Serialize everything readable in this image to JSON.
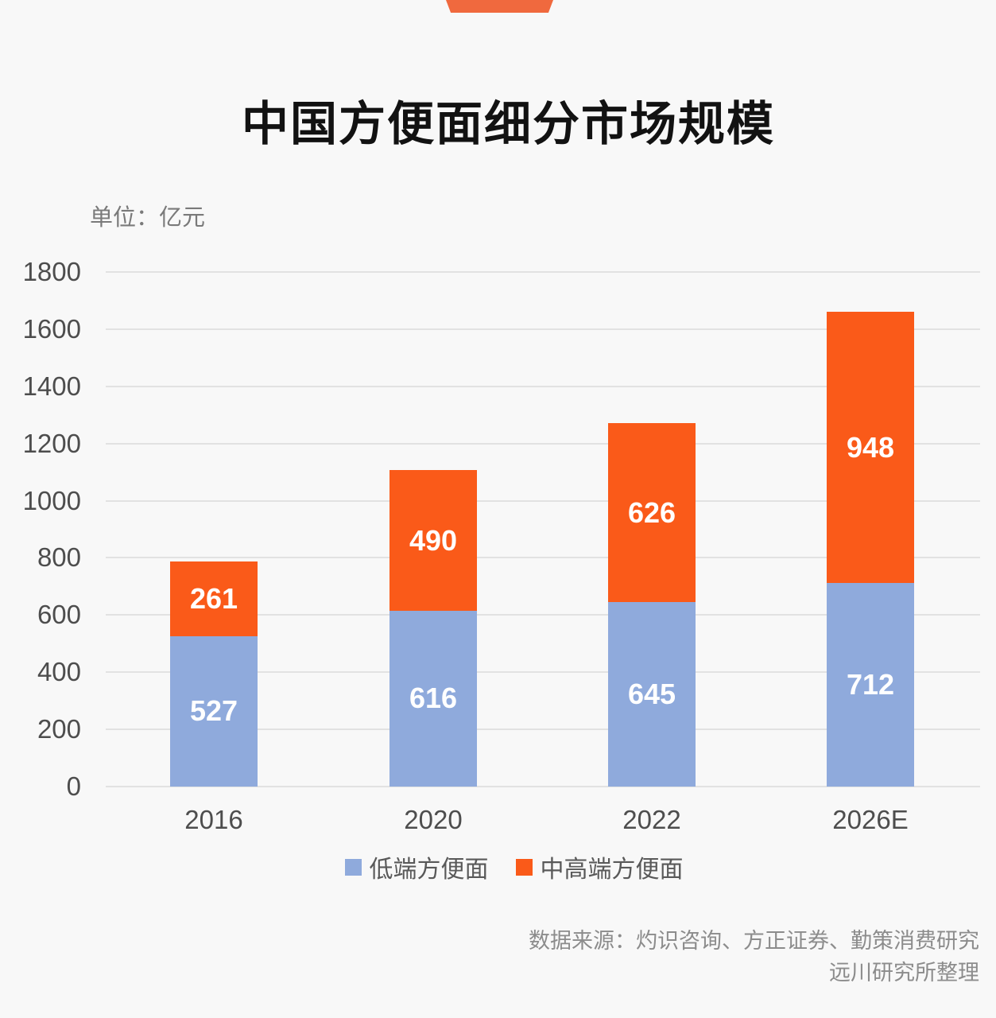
{
  "page": {
    "background_color": "#f8f8f8",
    "banner_color": "#f0693e",
    "gridline_color": "#e2e2e2"
  },
  "title": "中国方便面细分市场规模",
  "unit_label": "单位：亿元",
  "source": {
    "line1": "数据来源：灼识咨询、方正证券、勤策消费研究",
    "line2": "远川研究所整理"
  },
  "chart_data": {
    "type": "bar",
    "stacked": true,
    "title": "中国方便面细分市场规模",
    "unit": "亿元",
    "categories": [
      "2016",
      "2020",
      "2022",
      "2026E"
    ],
    "series": [
      {
        "name": "低端方便面",
        "color": "#8faadc",
        "values": [
          527,
          616,
          645,
          712
        ]
      },
      {
        "name": "中高端方便面",
        "color": "#fa5a19",
        "values": [
          261,
          490,
          626,
          948
        ]
      }
    ],
    "totals": [
      788,
      1106,
      1271,
      1660
    ],
    "value_labels_shown": true,
    "value_label_color": "#ffffff",
    "ylim": [
      0,
      1800
    ],
    "ytick_step": 200,
    "yticks": [
      0,
      200,
      400,
      600,
      800,
      1000,
      1200,
      1400,
      1600,
      1800
    ],
    "grid": true,
    "legend_position": "bottom"
  }
}
